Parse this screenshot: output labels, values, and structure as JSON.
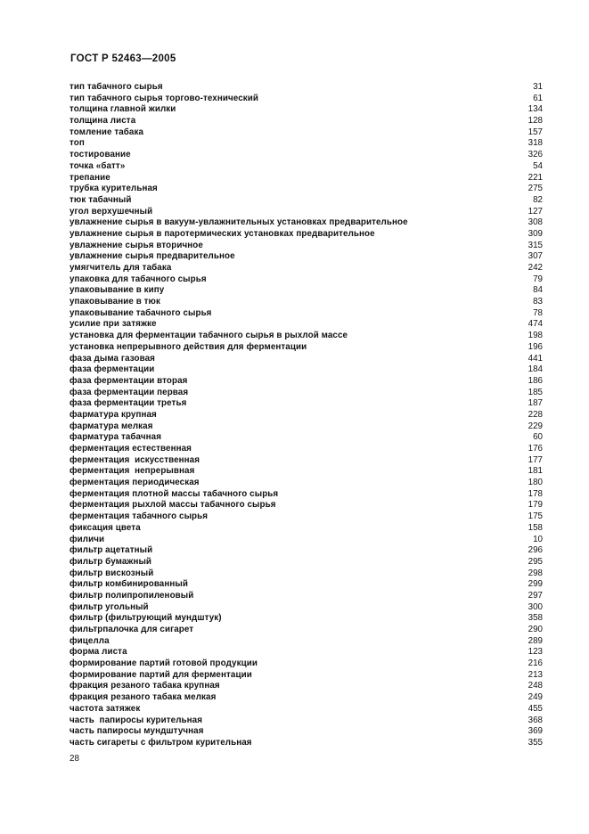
{
  "page": {
    "header": "ГОСТ Р 52463—2005",
    "page_number": "28"
  },
  "index": {
    "entries": [
      {
        "term": "тип табачного сырья",
        "num": "31"
      },
      {
        "term": "тип табачного сырья торгово-технический",
        "num": "61"
      },
      {
        "term": "толщина главной жилки",
        "num": "134"
      },
      {
        "term": "толщина листа",
        "num": "128"
      },
      {
        "term": "томление табака",
        "num": "157"
      },
      {
        "term": "топ",
        "num": "318"
      },
      {
        "term": "тостирование",
        "num": "326"
      },
      {
        "term": "точка «батт»",
        "num": "54"
      },
      {
        "term": "трепание",
        "num": "221"
      },
      {
        "term": "трубка курительная",
        "num": "275"
      },
      {
        "term": "тюк табачный",
        "num": "82"
      },
      {
        "term": "угол верхушечный",
        "num": "127"
      },
      {
        "term": "увлажнение сырья в вакуум-увлажнительных установках предварительное",
        "num": "308"
      },
      {
        "term": "увлажнение сырья в паротермических установках предварительное",
        "num": "309"
      },
      {
        "term": "увлажнение сырья вторичное",
        "num": "315"
      },
      {
        "term": "увлажнение сырья предварительное",
        "num": "307"
      },
      {
        "term": "умягчитель для табака",
        "num": "242"
      },
      {
        "term": "упаковка для табачного сырья",
        "num": "79"
      },
      {
        "term": "упаковывание в кипу",
        "num": "84"
      },
      {
        "term": "упаковывание в тюк",
        "num": "83"
      },
      {
        "term": "упаковывание табачного сырья",
        "num": "78"
      },
      {
        "term": "усилие при затяжке",
        "num": "474"
      },
      {
        "term": "установка для ферментации табачного сырья в рыхлой массе",
        "num": "198"
      },
      {
        "term": "установка непрерывного действия для ферментации",
        "num": "196"
      },
      {
        "term": "фаза дыма газовая",
        "num": "441"
      },
      {
        "term": "фаза ферментации",
        "num": "184"
      },
      {
        "term": "фаза ферментации вторая",
        "num": "186"
      },
      {
        "term": "фаза ферментации первая",
        "num": "185"
      },
      {
        "term": "фаза ферментации третья",
        "num": "187"
      },
      {
        "term": "фарматура крупная",
        "num": "228"
      },
      {
        "term": "фарматура мелкая",
        "num": "229"
      },
      {
        "term": "фарматура табачная",
        "num": "60"
      },
      {
        "term": "ферментация естественная",
        "num": "176"
      },
      {
        "term": "ферментация  искусственная",
        "num": "177"
      },
      {
        "term": "ферментация  непрерывная",
        "num": "181"
      },
      {
        "term": "ферментация периодическая",
        "num": "180"
      },
      {
        "term": "ферментация плотной массы табачного сырья",
        "num": "178"
      },
      {
        "term": "ферментация рыхлой массы табачного сырья",
        "num": "179"
      },
      {
        "term": "ферментация табачного сырья",
        "num": "175"
      },
      {
        "term": "фиксация цвета",
        "num": "158"
      },
      {
        "term": "филичи",
        "num": "10"
      },
      {
        "term": "фильтр ацетатный",
        "num": "296"
      },
      {
        "term": "фильтр бумажный",
        "num": "295"
      },
      {
        "term": "фильтр вискозный",
        "num": "298"
      },
      {
        "term": "фильтр комбинированный",
        "num": "299"
      },
      {
        "term": "фильтр полипропиленовый",
        "num": "297"
      },
      {
        "term": "фильтр угольный",
        "num": "300"
      },
      {
        "term": "фильтр (фильтрующий мундштук)",
        "num": "358"
      },
      {
        "term": "фильтрпалочка для сигарет",
        "num": "290"
      },
      {
        "term": "фицелла",
        "num": "289"
      },
      {
        "term": "форма листа",
        "num": "123"
      },
      {
        "term": "формирование партий готовой продукции",
        "num": "216"
      },
      {
        "term": "формирование партий для ферментации",
        "num": "213"
      },
      {
        "term": "фракция резаного табака крупная",
        "num": "248"
      },
      {
        "term": "фракция резаного табака мелкая",
        "num": "249"
      },
      {
        "term": "частота затяжек",
        "num": "455"
      },
      {
        "term": "часть  папиросы курительная",
        "num": "368"
      },
      {
        "term": "часть папиросы мундштучная",
        "num": "369"
      },
      {
        "term": "часть сигареты с фильтром курительная",
        "num": "355"
      }
    ]
  }
}
